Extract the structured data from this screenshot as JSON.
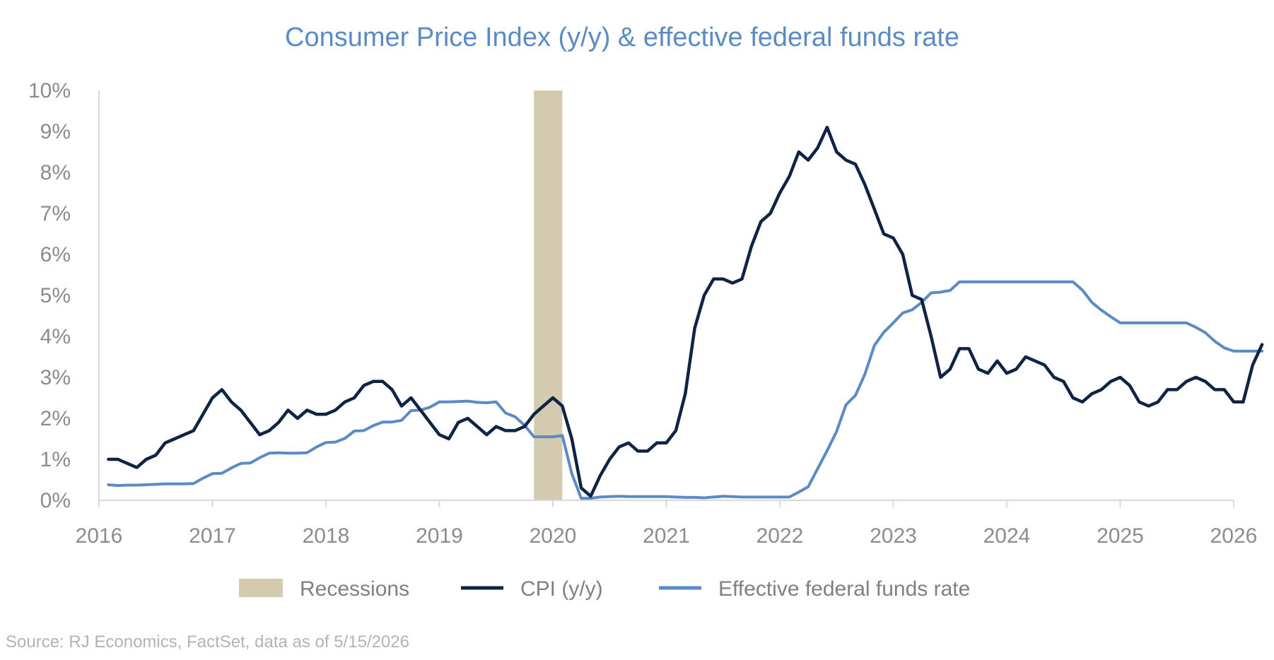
{
  "chart_data": {
    "type": "line",
    "title": "Consumer Price Index (y/y) & effective federal funds rate",
    "xlabel": "",
    "ylabel": "",
    "x_ticks": [
      "2016",
      "2017",
      "2018",
      "2019",
      "2020",
      "2021",
      "2022",
      "2023",
      "2024",
      "2025",
      "2026"
    ],
    "y_ticks": [
      "0%",
      "1%",
      "2%",
      "3%",
      "4%",
      "5%",
      "6%",
      "7%",
      "8%",
      "9%",
      "10%"
    ],
    "xlim": [
      "2016-01",
      "2026-01"
    ],
    "ylim": [
      0,
      10
    ],
    "grid": false,
    "legend_position": "bottom",
    "recessions": [
      {
        "start": "2019-11",
        "end": "2020-02"
      }
    ],
    "series": [
      {
        "name": "CPI (y/y)",
        "color": "#0f2444",
        "points": [
          [
            "2016-02",
            1.0
          ],
          [
            "2016-03",
            1.0
          ],
          [
            "2016-04",
            0.9
          ],
          [
            "2016-05",
            0.8
          ],
          [
            "2016-06",
            1.0
          ],
          [
            "2016-07",
            1.1
          ],
          [
            "2016-08",
            1.4
          ],
          [
            "2016-09",
            1.5
          ],
          [
            "2016-10",
            1.6
          ],
          [
            "2016-11",
            1.7
          ],
          [
            "2016-12",
            2.1
          ],
          [
            "2017-01",
            2.5
          ],
          [
            "2017-02",
            2.7
          ],
          [
            "2017-03",
            2.4
          ],
          [
            "2017-04",
            2.2
          ],
          [
            "2017-05",
            1.9
          ],
          [
            "2017-06",
            1.6
          ],
          [
            "2017-07",
            1.7
          ],
          [
            "2017-08",
            1.9
          ],
          [
            "2017-09",
            2.2
          ],
          [
            "2017-10",
            2.0
          ],
          [
            "2017-11",
            2.2
          ],
          [
            "2017-12",
            2.1
          ],
          [
            "2018-01",
            2.1
          ],
          [
            "2018-02",
            2.2
          ],
          [
            "2018-03",
            2.4
          ],
          [
            "2018-04",
            2.5
          ],
          [
            "2018-05",
            2.8
          ],
          [
            "2018-06",
            2.9
          ],
          [
            "2018-07",
            2.9
          ],
          [
            "2018-08",
            2.7
          ],
          [
            "2018-09",
            2.3
          ],
          [
            "2018-10",
            2.5
          ],
          [
            "2018-11",
            2.2
          ],
          [
            "2018-12",
            1.9
          ],
          [
            "2019-01",
            1.6
          ],
          [
            "2019-02",
            1.5
          ],
          [
            "2019-03",
            1.9
          ],
          [
            "2019-04",
            2.0
          ],
          [
            "2019-05",
            1.8
          ],
          [
            "2019-06",
            1.6
          ],
          [
            "2019-07",
            1.8
          ],
          [
            "2019-08",
            1.7
          ],
          [
            "2019-09",
            1.7
          ],
          [
            "2019-10",
            1.8
          ],
          [
            "2019-11",
            2.1
          ],
          [
            "2019-12",
            2.3
          ],
          [
            "2020-01",
            2.5
          ],
          [
            "2020-02",
            2.3
          ],
          [
            "2020-03",
            1.5
          ],
          [
            "2020-04",
            0.3
          ],
          [
            "2020-05",
            0.1
          ],
          [
            "2020-06",
            0.6
          ],
          [
            "2020-07",
            1.0
          ],
          [
            "2020-08",
            1.3
          ],
          [
            "2020-09",
            1.4
          ],
          [
            "2020-10",
            1.2
          ],
          [
            "2020-11",
            1.2
          ],
          [
            "2020-12",
            1.4
          ],
          [
            "2021-01",
            1.4
          ],
          [
            "2021-02",
            1.7
          ],
          [
            "2021-03",
            2.6
          ],
          [
            "2021-04",
            4.2
          ],
          [
            "2021-05",
            5.0
          ],
          [
            "2021-06",
            5.4
          ],
          [
            "2021-07",
            5.4
          ],
          [
            "2021-08",
            5.3
          ],
          [
            "2021-09",
            5.4
          ],
          [
            "2021-10",
            6.2
          ],
          [
            "2021-11",
            6.8
          ],
          [
            "2021-12",
            7.0
          ],
          [
            "2022-01",
            7.5
          ],
          [
            "2022-02",
            7.9
          ],
          [
            "2022-03",
            8.5
          ],
          [
            "2022-04",
            8.3
          ],
          [
            "2022-05",
            8.6
          ],
          [
            "2022-06",
            9.1
          ],
          [
            "2022-07",
            8.5
          ],
          [
            "2022-08",
            8.3
          ],
          [
            "2022-09",
            8.2
          ],
          [
            "2022-10",
            7.7
          ],
          [
            "2022-11",
            7.1
          ],
          [
            "2022-12",
            6.5
          ],
          [
            "2023-01",
            6.4
          ],
          [
            "2023-02",
            6.0
          ],
          [
            "2023-03",
            5.0
          ],
          [
            "2023-04",
            4.9
          ],
          [
            "2023-05",
            4.0
          ],
          [
            "2023-06",
            3.0
          ],
          [
            "2023-07",
            3.2
          ],
          [
            "2023-08",
            3.7
          ],
          [
            "2023-09",
            3.7
          ],
          [
            "2023-10",
            3.2
          ],
          [
            "2023-11",
            3.1
          ],
          [
            "2023-12",
            3.4
          ],
          [
            "2024-01",
            3.1
          ],
          [
            "2024-02",
            3.2
          ],
          [
            "2024-03",
            3.5
          ],
          [
            "2024-04",
            3.4
          ],
          [
            "2024-05",
            3.3
          ],
          [
            "2024-06",
            3.0
          ],
          [
            "2024-07",
            2.9
          ],
          [
            "2024-08",
            2.5
          ],
          [
            "2024-09",
            2.4
          ],
          [
            "2024-10",
            2.6
          ],
          [
            "2024-11",
            2.7
          ],
          [
            "2024-12",
            2.9
          ],
          [
            "2025-01",
            3.0
          ],
          [
            "2025-02",
            2.8
          ],
          [
            "2025-03",
            2.4
          ],
          [
            "2025-04",
            2.3
          ],
          [
            "2025-05",
            2.4
          ],
          [
            "2025-06",
            2.7
          ],
          [
            "2025-07",
            2.7
          ],
          [
            "2025-08",
            2.9
          ],
          [
            "2025-09",
            3.0
          ],
          [
            "2025-10",
            2.9
          ],
          [
            "2025-11",
            2.7
          ],
          [
            "2025-12",
            2.7
          ],
          [
            "2026-01",
            2.4
          ],
          [
            "2026-02",
            2.4
          ],
          [
            "2026-03",
            3.3
          ],
          [
            "2026-04",
            3.8
          ]
        ]
      },
      {
        "name": "Effective federal funds rate",
        "color": "#5b8bc4",
        "points": [
          [
            "2016-02",
            0.38
          ],
          [
            "2016-03",
            0.36
          ],
          [
            "2016-04",
            0.37
          ],
          [
            "2016-05",
            0.37
          ],
          [
            "2016-06",
            0.38
          ],
          [
            "2016-07",
            0.39
          ],
          [
            "2016-08",
            0.4
          ],
          [
            "2016-09",
            0.4
          ],
          [
            "2016-10",
            0.4
          ],
          [
            "2016-11",
            0.41
          ],
          [
            "2016-12",
            0.54
          ],
          [
            "2017-01",
            0.65
          ],
          [
            "2017-02",
            0.66
          ],
          [
            "2017-03",
            0.79
          ],
          [
            "2017-04",
            0.9
          ],
          [
            "2017-05",
            0.91
          ],
          [
            "2017-06",
            1.04
          ],
          [
            "2017-07",
            1.15
          ],
          [
            "2017-08",
            1.16
          ],
          [
            "2017-09",
            1.15
          ],
          [
            "2017-10",
            1.15
          ],
          [
            "2017-11",
            1.16
          ],
          [
            "2017-12",
            1.3
          ],
          [
            "2018-01",
            1.41
          ],
          [
            "2018-02",
            1.42
          ],
          [
            "2018-03",
            1.51
          ],
          [
            "2018-04",
            1.69
          ],
          [
            "2018-05",
            1.7
          ],
          [
            "2018-06",
            1.82
          ],
          [
            "2018-07",
            1.91
          ],
          [
            "2018-08",
            1.91
          ],
          [
            "2018-09",
            1.95
          ],
          [
            "2018-10",
            2.19
          ],
          [
            "2018-11",
            2.2
          ],
          [
            "2018-12",
            2.27
          ],
          [
            "2019-01",
            2.4
          ],
          [
            "2019-02",
            2.4
          ],
          [
            "2019-03",
            2.41
          ],
          [
            "2019-04",
            2.42
          ],
          [
            "2019-05",
            2.39
          ],
          [
            "2019-06",
            2.38
          ],
          [
            "2019-07",
            2.4
          ],
          [
            "2019-08",
            2.13
          ],
          [
            "2019-09",
            2.04
          ],
          [
            "2019-10",
            1.83
          ],
          [
            "2019-11",
            1.55
          ],
          [
            "2019-12",
            1.55
          ],
          [
            "2020-01",
            1.55
          ],
          [
            "2020-02",
            1.58
          ],
          [
            "2020-03",
            0.65
          ],
          [
            "2020-04",
            0.05
          ],
          [
            "2020-05",
            0.05
          ],
          [
            "2020-06",
            0.08
          ],
          [
            "2020-07",
            0.09
          ],
          [
            "2020-08",
            0.1
          ],
          [
            "2020-09",
            0.09
          ],
          [
            "2020-10",
            0.09
          ],
          [
            "2020-11",
            0.09
          ],
          [
            "2020-12",
            0.09
          ],
          [
            "2021-01",
            0.09
          ],
          [
            "2021-02",
            0.08
          ],
          [
            "2021-03",
            0.07
          ],
          [
            "2021-04",
            0.07
          ],
          [
            "2021-05",
            0.06
          ],
          [
            "2021-06",
            0.08
          ],
          [
            "2021-07",
            0.1
          ],
          [
            "2021-08",
            0.09
          ],
          [
            "2021-09",
            0.08
          ],
          [
            "2021-10",
            0.08
          ],
          [
            "2021-11",
            0.08
          ],
          [
            "2021-12",
            0.08
          ],
          [
            "2022-01",
            0.08
          ],
          [
            "2022-02",
            0.08
          ],
          [
            "2022-03",
            0.2
          ],
          [
            "2022-04",
            0.33
          ],
          [
            "2022-05",
            0.77
          ],
          [
            "2022-06",
            1.21
          ],
          [
            "2022-07",
            1.68
          ],
          [
            "2022-08",
            2.33
          ],
          [
            "2022-09",
            2.56
          ],
          [
            "2022-10",
            3.08
          ],
          [
            "2022-11",
            3.78
          ],
          [
            "2022-12",
            4.1
          ],
          [
            "2023-01",
            4.33
          ],
          [
            "2023-02",
            4.57
          ],
          [
            "2023-03",
            4.65
          ],
          [
            "2023-04",
            4.83
          ],
          [
            "2023-05",
            5.06
          ],
          [
            "2023-06",
            5.08
          ],
          [
            "2023-07",
            5.12
          ],
          [
            "2023-08",
            5.33
          ],
          [
            "2023-09",
            5.33
          ],
          [
            "2023-10",
            5.33
          ],
          [
            "2023-11",
            5.33
          ],
          [
            "2023-12",
            5.33
          ],
          [
            "2024-01",
            5.33
          ],
          [
            "2024-02",
            5.33
          ],
          [
            "2024-03",
            5.33
          ],
          [
            "2024-04",
            5.33
          ],
          [
            "2024-05",
            5.33
          ],
          [
            "2024-06",
            5.33
          ],
          [
            "2024-07",
            5.33
          ],
          [
            "2024-08",
            5.33
          ],
          [
            "2024-09",
            5.13
          ],
          [
            "2024-10",
            4.83
          ],
          [
            "2024-11",
            4.64
          ],
          [
            "2024-12",
            4.48
          ],
          [
            "2025-01",
            4.33
          ],
          [
            "2025-02",
            4.33
          ],
          [
            "2025-03",
            4.33
          ],
          [
            "2025-04",
            4.33
          ],
          [
            "2025-05",
            4.33
          ],
          [
            "2025-06",
            4.33
          ],
          [
            "2025-07",
            4.33
          ],
          [
            "2025-08",
            4.33
          ],
          [
            "2025-09",
            4.22
          ],
          [
            "2025-10",
            4.09
          ],
          [
            "2025-11",
            3.88
          ],
          [
            "2025-12",
            3.72
          ],
          [
            "2026-01",
            3.64
          ],
          [
            "2026-02",
            3.64
          ],
          [
            "2026-03",
            3.64
          ],
          [
            "2026-04",
            3.64
          ]
        ]
      }
    ],
    "legend": [
      {
        "label": "Recessions",
        "swatch": "box",
        "color": "#d3cab0"
      },
      {
        "label": "CPI (y/y)",
        "swatch": "line",
        "color": "#0f2444"
      },
      {
        "label": "Effective federal funds rate",
        "swatch": "line",
        "color": "#5b8bc4"
      }
    ]
  },
  "source_note": "Source: RJ Economics, FactSet, data as of 5/15/2026"
}
